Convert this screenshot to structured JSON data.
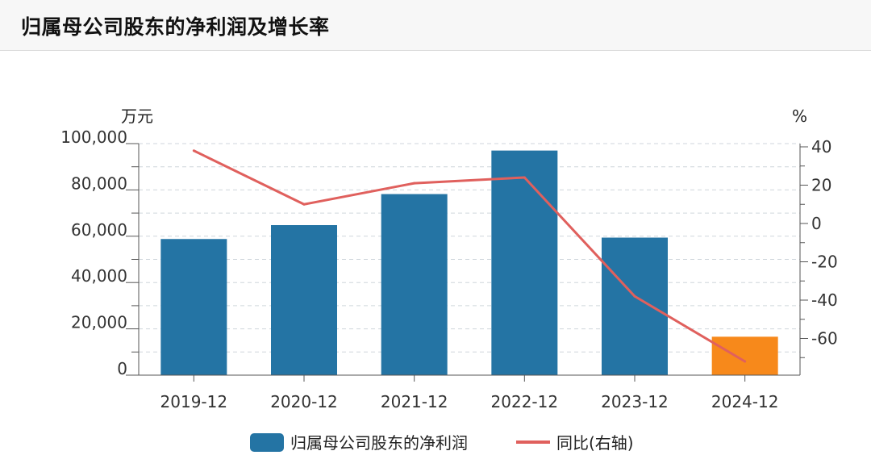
{
  "header": {
    "title": "归属母公司股东的净利润及增长率"
  },
  "chart_data": {
    "type": "bar",
    "categories": [
      "2019-12",
      "2020-12",
      "2021-12",
      "2022-12",
      "2023-12",
      "2024-12"
    ],
    "series": [
      {
        "name": "归属母公司股东的净利润",
        "type": "bar",
        "axis": "left",
        "values": [
          58800,
          64800,
          78200,
          97000,
          59400,
          16600
        ],
        "colors": [
          "#2474a4",
          "#2474a4",
          "#2474a4",
          "#2474a4",
          "#2474a4",
          "#f7891b"
        ]
      },
      {
        "name": "同比(右轴)",
        "type": "line",
        "axis": "right",
        "color": "#e0605d",
        "values": [
          38,
          10,
          21,
          24,
          -38,
          -72
        ]
      }
    ],
    "ylabel_left": "万元",
    "ylabel_right": "%",
    "ylim_left": [
      0,
      100000
    ],
    "yticks_left": [
      0,
      20000,
      40000,
      60000,
      80000,
      100000
    ],
    "ytick_labels_left": [
      "0",
      "20,000",
      "40,000",
      "60,000",
      "80,000",
      "100,000"
    ],
    "yticks_right": [
      40,
      20,
      0,
      -20,
      -40,
      -60
    ],
    "ytick_labels_right": [
      "40",
      "20",
      "0",
      "-20",
      "-40",
      "-60"
    ],
    "grid": true,
    "legend_position": "bottom-center"
  }
}
